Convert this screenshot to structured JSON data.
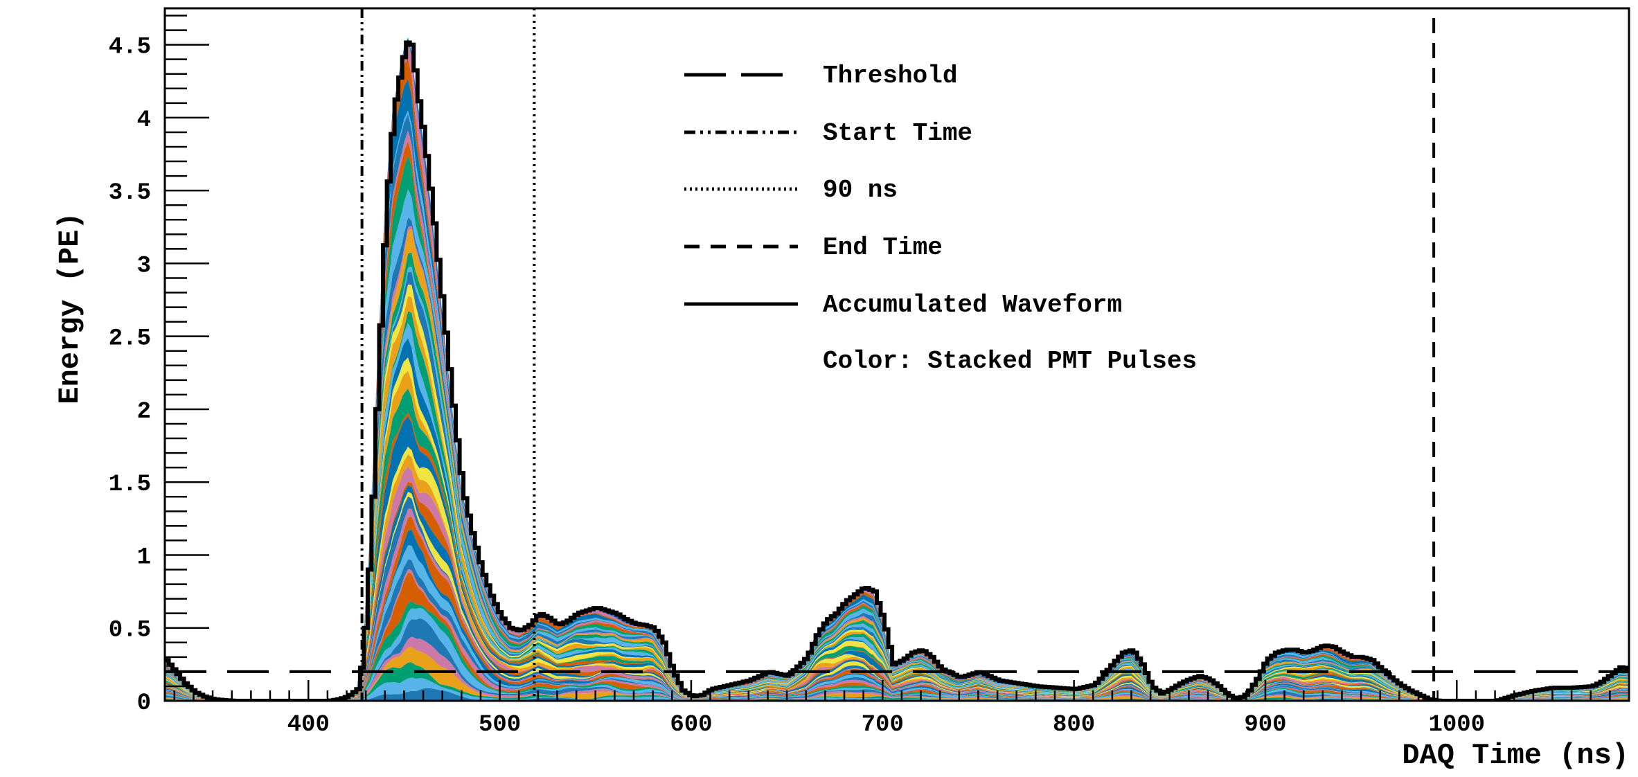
{
  "chart_data": {
    "type": "area",
    "title": "",
    "xlabel": "DAQ Time (ns)",
    "ylabel": "Energy (PE)",
    "xlim": [
      325,
      1090
    ],
    "ylim": [
      0,
      4.75
    ],
    "x_ticks": [
      {
        "value": 400,
        "label": "400"
      },
      {
        "value": 500,
        "label": "500"
      },
      {
        "value": 600,
        "label": "600"
      },
      {
        "value": 700,
        "label": "700"
      },
      {
        "value": 800,
        "label": "800"
      },
      {
        "value": 900,
        "label": "900"
      },
      {
        "value": 1000,
        "label": "1000"
      }
    ],
    "y_ticks": [
      {
        "value": 0,
        "label": "0"
      },
      {
        "value": 0.5,
        "label": "0.5"
      },
      {
        "value": 1,
        "label": "1"
      },
      {
        "value": 1.5,
        "label": "1.5"
      },
      {
        "value": 2,
        "label": "2"
      },
      {
        "value": 2.5,
        "label": "2.5"
      },
      {
        "value": 3,
        "label": "3"
      },
      {
        "value": 3.5,
        "label": "3.5"
      },
      {
        "value": 4,
        "label": "4"
      },
      {
        "value": 4.5,
        "label": "4.5"
      }
    ],
    "threshold": 0.2,
    "start_time": 428,
    "time_90ns": 518,
    "end_time": 988,
    "accumulated_waveform": {
      "x": [
        325,
        330,
        335,
        340,
        345,
        350,
        360,
        380,
        400,
        410,
        415,
        420,
        425,
        428,
        432,
        436,
        440,
        444,
        448,
        450,
        452,
        454,
        456,
        460,
        464,
        468,
        472,
        476,
        480,
        485,
        490,
        495,
        500,
        505,
        510,
        515,
        520,
        525,
        530,
        535,
        540,
        545,
        550,
        555,
        560,
        565,
        570,
        575,
        580,
        585,
        590,
        595,
        600,
        605,
        610,
        620,
        630,
        640,
        650,
        660,
        665,
        670,
        675,
        680,
        685,
        690,
        695,
        700,
        705,
        710,
        715,
        720,
        725,
        730,
        740,
        750,
        760,
        770,
        780,
        790,
        800,
        810,
        815,
        820,
        825,
        830,
        835,
        840,
        845,
        850,
        855,
        860,
        865,
        870,
        875,
        880,
        885,
        890,
        895,
        900,
        905,
        910,
        915,
        920,
        925,
        930,
        935,
        940,
        945,
        950,
        955,
        960,
        965,
        970,
        975,
        980,
        985,
        990,
        995,
        1000,
        1010,
        1020,
        1030,
        1040,
        1050,
        1060,
        1070,
        1075,
        1080,
        1085,
        1090
      ],
      "y": [
        0.28,
        0.2,
        0.12,
        0.06,
        0.03,
        0.01,
        0,
        0,
        0,
        0,
        0.01,
        0.03,
        0.08,
        0.3,
        1.1,
        2.3,
        3.4,
        4.05,
        4.35,
        4.48,
        4.55,
        4.45,
        4.2,
        3.85,
        3.4,
        2.9,
        2.4,
        1.9,
        1.45,
        1.15,
        0.9,
        0.72,
        0.58,
        0.5,
        0.48,
        0.52,
        0.6,
        0.57,
        0.52,
        0.55,
        0.6,
        0.62,
        0.64,
        0.62,
        0.6,
        0.56,
        0.53,
        0.52,
        0.5,
        0.4,
        0.2,
        0.07,
        0.03,
        0.04,
        0.08,
        0.11,
        0.14,
        0.2,
        0.17,
        0.3,
        0.45,
        0.55,
        0.6,
        0.68,
        0.73,
        0.78,
        0.75,
        0.55,
        0.25,
        0.28,
        0.33,
        0.35,
        0.3,
        0.22,
        0.16,
        0.2,
        0.14,
        0.12,
        0.1,
        0.09,
        0.08,
        0.11,
        0.18,
        0.26,
        0.33,
        0.35,
        0.25,
        0.1,
        0.05,
        0.08,
        0.12,
        0.15,
        0.17,
        0.15,
        0.1,
        0.04,
        0.01,
        0.05,
        0.15,
        0.28,
        0.33,
        0.35,
        0.35,
        0.33,
        0.35,
        0.38,
        0.37,
        0.33,
        0.3,
        0.3,
        0.28,
        0.22,
        0.16,
        0.11,
        0.07,
        0.04,
        0.01,
        0,
        0,
        0,
        0,
        0,
        0.04,
        0.07,
        0.09,
        0.09,
        0.1,
        0.13,
        0.18,
        0.23,
        0.22
      ]
    },
    "stacked_colors": [
      "#1f77b4",
      "#e8a118",
      "#d55e00",
      "#56b4e9",
      "#f0e442",
      "#cc79a7",
      "#009e73",
      "#0072b2"
    ],
    "legend": {
      "placement": "top-center",
      "entries": [
        {
          "style": "longdash",
          "label": "Threshold"
        },
        {
          "style": "dashdotdot",
          "label": "Start Time"
        },
        {
          "style": "dotted",
          "label": "90 ns"
        },
        {
          "style": "dashed",
          "label": "End Time"
        },
        {
          "style": "solid",
          "label": "Accumulated Waveform"
        },
        {
          "style": "none",
          "label": "Color: Stacked PMT Pulses"
        }
      ]
    }
  }
}
